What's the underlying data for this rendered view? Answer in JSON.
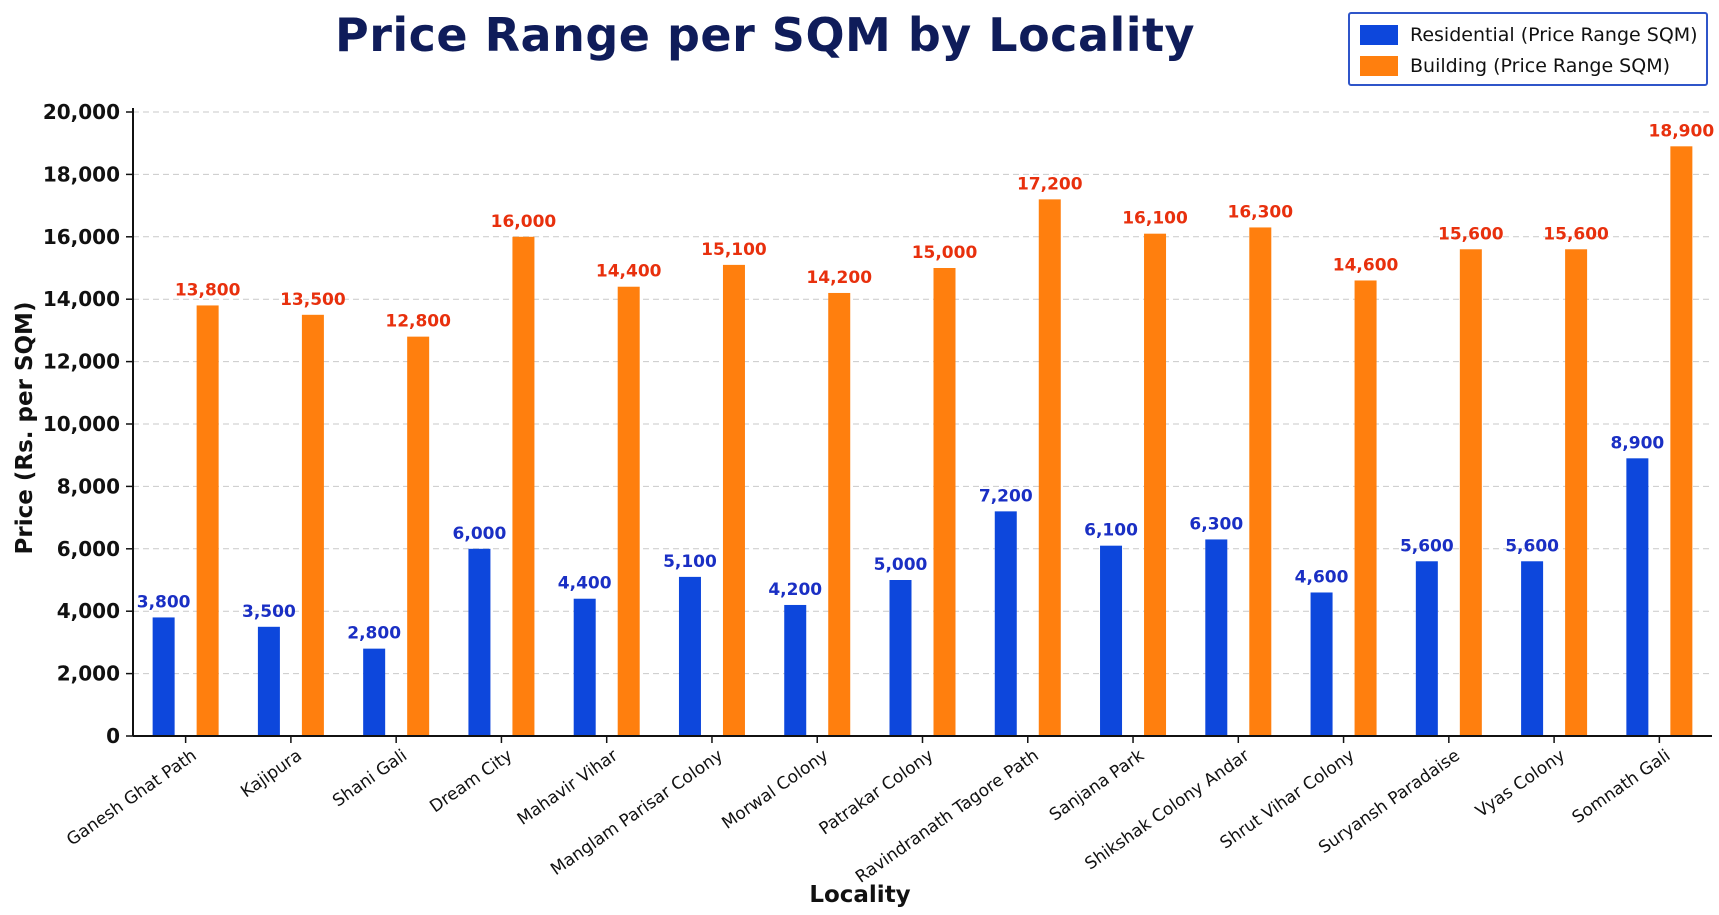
{
  "chart_data": {
    "type": "bar",
    "title": "Price Range per SQM by Locality",
    "xlabel": "Locality",
    "ylabel": "Price (Rs. per SQM)",
    "ylim": [
      0,
      20000
    ],
    "yticks": [
      0,
      2000,
      4000,
      6000,
      8000,
      10000,
      12000,
      14000,
      16000,
      18000,
      20000
    ],
    "ytick_labels": [
      "0",
      "2,000",
      "4,000",
      "6,000",
      "8,000",
      "10,000",
      "12,000",
      "14,000",
      "16,000",
      "18,000",
      "20,000"
    ],
    "grid": true,
    "legend_position": "top-right",
    "categories": [
      "Ganesh Ghat Path",
      "Kajipura",
      "Shani Gali",
      "Dream City",
      "Mahavir Vihar",
      "Manglam Parisar Colony",
      "Morwal Colony",
      "Patrakar Colony",
      "Ravindranath Tagore Path",
      "Sanjana Park",
      "Shikshak Colony Andar",
      "Shrut Vihar Colony",
      "Suryansh Paradaise",
      "Vyas Colony",
      "Somnath Gali"
    ],
    "series": [
      {
        "name": "Residential (Price Range SQM)",
        "color": "#0d47dc",
        "label_color": "#1a2fc4",
        "values": [
          3800,
          3500,
          2800,
          6000,
          4400,
          5100,
          4200,
          5000,
          7200,
          6100,
          6300,
          4600,
          5600,
          5600,
          8900
        ],
        "labels": [
          "3,800",
          "3,500",
          "2,800",
          "6,000",
          "4,400",
          "5,100",
          "4,200",
          "5,000",
          "7,200",
          "6,100",
          "6,300",
          "4,600",
          "5,600",
          "5,600",
          "8,900"
        ]
      },
      {
        "name": "Building (Price Range SQM)",
        "color": "#ff7f0e",
        "label_color": "#e8300d",
        "values": [
          13800,
          13500,
          12800,
          16000,
          14400,
          15100,
          14200,
          15000,
          17200,
          16100,
          16300,
          14600,
          15600,
          15600,
          18900
        ],
        "labels": [
          "13,800",
          "13,500",
          "12,800",
          "16,000",
          "14,400",
          "15,100",
          "14,200",
          "15,000",
          "17,200",
          "16,100",
          "16,300",
          "14,600",
          "15,600",
          "15,600",
          "18,900"
        ]
      }
    ]
  }
}
